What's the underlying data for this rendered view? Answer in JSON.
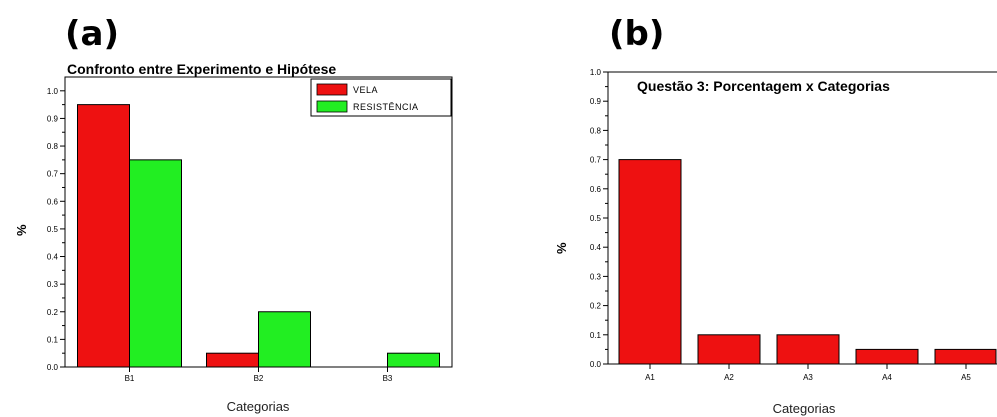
{
  "panels": {
    "a": "(a)",
    "b": "(b)"
  },
  "colors": {
    "vela": "#ee1111",
    "resistencia": "#22ee22",
    "bar_b": "#ee1111",
    "axis": "#000000"
  },
  "chart_data": [
    {
      "type": "bar",
      "title": "Confronto entre Experimento e Hipótese",
      "xlabel": "Categorias",
      "ylabel": "%",
      "categories": [
        "B1",
        "B2",
        "B3"
      ],
      "series": [
        {
          "name": "VELA",
          "values": [
            0.95,
            0.05,
            0.0
          ]
        },
        {
          "name": "RESISTÊNCIA",
          "values": [
            0.75,
            0.2,
            0.05
          ]
        }
      ],
      "ylim": [
        0,
        1.05
      ],
      "yticks": [
        "0.0",
        "0.1",
        "0.2",
        "0.3",
        "0.4",
        "0.5",
        "0.6",
        "0.7",
        "0.8",
        "0.9",
        "1.0"
      ],
      "legend": "top-right",
      "grid": false
    },
    {
      "type": "bar",
      "title": "Questão 3: Porcentagem  x Categorias",
      "xlabel": "Categorias",
      "ylabel": "%",
      "categories": [
        "A1",
        "A2",
        "A3",
        "A4",
        "A5"
      ],
      "series": [
        {
          "values": [
            0.7,
            0.1,
            0.1,
            0.05,
            0.05
          ]
        }
      ],
      "ylim": [
        0,
        1.0
      ],
      "yticks": [
        "0.0",
        "0.1",
        "0.2",
        "0.3",
        "0.4",
        "0.5",
        "0.6",
        "0.7",
        "0.8",
        "0.9",
        "1.0"
      ],
      "grid": false
    }
  ]
}
